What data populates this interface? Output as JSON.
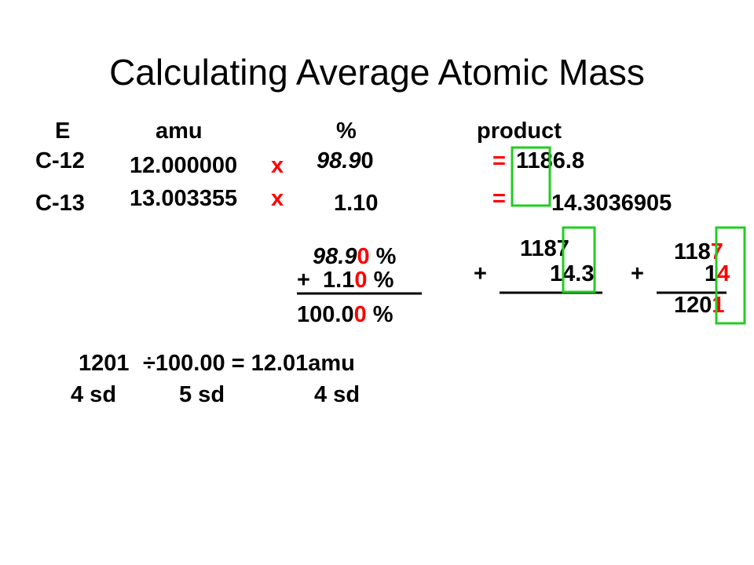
{
  "title": "Calculating Average Atomic Mass",
  "headers": [
    "E",
    "amu",
    "%",
    "product"
  ],
  "rows": [
    {
      "element": "C-12",
      "amu": "12.000000",
      "times": "x",
      "percent": [
        "98.9",
        "0"
      ],
      "equals": "=",
      "product": "1186.8"
    },
    {
      "element": "C-13",
      "amu": "13.003355",
      "times": "x",
      "percent": [
        "1.10"
      ],
      "equals": "=",
      "product": "14.3036905"
    }
  ],
  "percent_sum": [
    [
      "98.9",
      "0",
      " %"
    ],
    [
      "+  1.1",
      "0",
      " %"
    ],
    [
      "100.0",
      "0",
      " %"
    ]
  ],
  "addition_1": {
    "top": "1187",
    "plus": "+",
    "bottom": "14.3"
  },
  "addition_2": {
    "top": [
      "118",
      "7"
    ],
    "plus": "+",
    "bottom": [
      "1",
      "4"
    ],
    "result": [
      "120",
      "1"
    ]
  },
  "calculation": {
    "line": [
      "1201",
      "÷100.00 = 12.01amu"
    ],
    "sig_figs": [
      "4 sd",
      "5 sd",
      "4 sd"
    ]
  }
}
